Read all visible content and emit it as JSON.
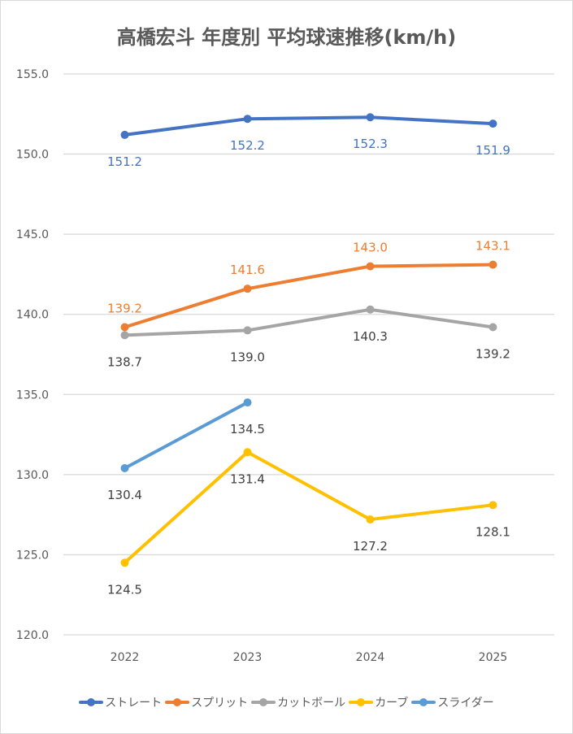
{
  "chart_data": {
    "type": "line",
    "title": "高橋宏斗 年度別 平均球速推移(km/h)",
    "xlabel": "",
    "ylabel": "",
    "categories": [
      "2022",
      "2023",
      "2024",
      "2025"
    ],
    "ylim": [
      120,
      155
    ],
    "yticks": [
      "120.0",
      "125.0",
      "130.0",
      "135.0",
      "140.0",
      "145.0",
      "150.0",
      "155.0"
    ],
    "grid": true,
    "legend_position": "bottom",
    "series": [
      {
        "name": "ストレート",
        "color": "#4472c4",
        "values": [
          151.2,
          152.2,
          152.3,
          151.9
        ],
        "labels": [
          "151.2",
          "152.2",
          "152.3",
          "151.9"
        ],
        "label_color": "#4472c4",
        "label_pos": "below"
      },
      {
        "name": "スプリット",
        "color": "#ed7d31",
        "values": [
          139.2,
          141.6,
          143.0,
          143.1
        ],
        "labels": [
          "139.2",
          "141.6",
          "143.0",
          "143.1"
        ],
        "label_color": "#ed7d31",
        "label_pos": "above"
      },
      {
        "name": "カットボール",
        "color": "#a5a5a5",
        "values": [
          138.7,
          139.0,
          140.3,
          139.2
        ],
        "labels": [
          "138.7",
          "139.0",
          "140.3",
          "139.2"
        ],
        "label_color": "#404040",
        "label_pos": "below"
      },
      {
        "name": "カーブ",
        "color": "#ffc000",
        "values": [
          124.5,
          131.4,
          127.2,
          128.1
        ],
        "labels": [
          "124.5",
          "131.4",
          "127.2",
          "128.1"
        ],
        "label_color": "#404040",
        "label_pos": "below"
      },
      {
        "name": "スライダー",
        "color": "#5b9bd5",
        "values": [
          130.4,
          134.5,
          null,
          null
        ],
        "labels": [
          "130.4",
          "134.5",
          null,
          null
        ],
        "label_color": "#404040",
        "label_pos": "below"
      }
    ]
  }
}
